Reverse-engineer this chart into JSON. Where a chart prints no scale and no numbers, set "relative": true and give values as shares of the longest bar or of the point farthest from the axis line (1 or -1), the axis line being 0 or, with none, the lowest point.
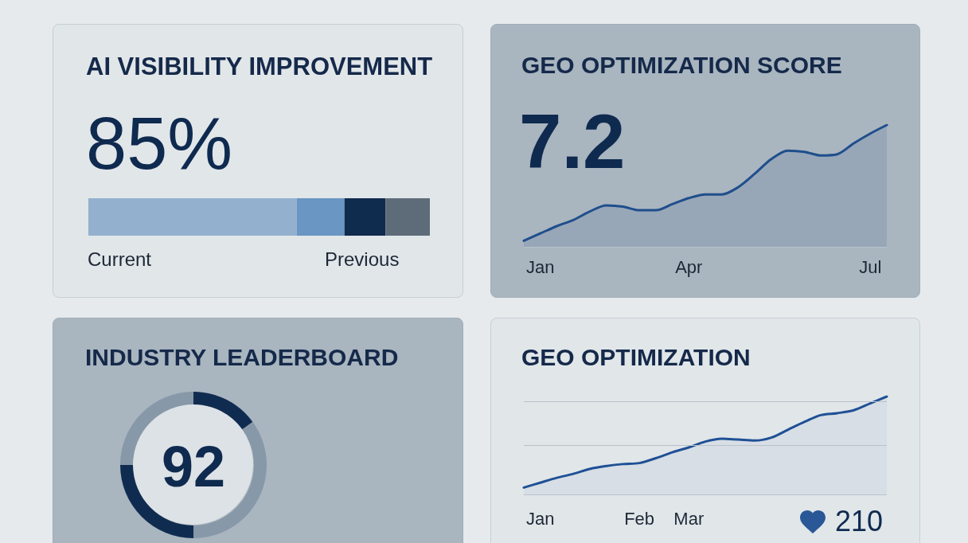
{
  "chart_data": [
    {
      "type": "bar",
      "title": "AI VISIBILITY IMPROVEMENT",
      "annotations": [
        "85%",
        "Current",
        "Previous"
      ],
      "orientation": "horizontal",
      "stacked": true,
      "relative": true,
      "categories": [
        null
      ],
      "series": [
        {
          "color": "#93b1cf",
          "values": [
            0.61
          ]
        },
        {
          "color": "#6996c2",
          "values": [
            0.14
          ]
        },
        {
          "color": "#0f2b4e",
          "values": [
            0.12
          ]
        },
        {
          "color": "#5e6c79",
          "values": [
            0.13
          ]
        }
      ]
    },
    {
      "type": "area",
      "title": "GEO OPTIMIZATION SCORE",
      "annotations": [
        "7.2"
      ],
      "relative": true,
      "categories": [
        null,
        "Jan",
        null,
        null,
        null,
        null,
        null,
        null,
        null,
        null,
        "Apr",
        null,
        null,
        null,
        null,
        null,
        null,
        null,
        null,
        null,
        null,
        "Jul",
        null
      ],
      "series": [
        {
          "color": "#1f4e8c",
          "values": [
            0.05,
            0.11,
            0.17,
            0.22,
            0.29,
            0.34,
            0.33,
            0.3,
            0.3,
            0.35,
            0.4,
            0.43,
            0.43,
            0.49,
            0.6,
            0.72,
            0.79,
            0.78,
            0.75,
            0.76,
            0.85,
            0.93,
            1
          ]
        }
      ]
    },
    {
      "type": "donut",
      "title": "INDUSTRY LEADERBOARD",
      "annotations": [
        "92"
      ],
      "categories": [
        null,
        null,
        null,
        null
      ],
      "values": [
        15,
        35,
        25,
        25
      ],
      "colors": [
        "#0f2c50",
        "#8798a8",
        "#0f2c50",
        "#8798a8"
      ]
    },
    {
      "type": "area",
      "title": "GEO OPTIMIZATION",
      "annotations": [
        "210"
      ],
      "relative": true,
      "ref_lines": [
        {
          "axis": "y",
          "value": 0,
          "color": "#b9c1c9"
        },
        {
          "axis": "y",
          "value": 0.5,
          "color": "#b9c1c9"
        },
        {
          "axis": "y",
          "value": 0.95,
          "color": "#b9c1c9"
        }
      ],
      "categories": [
        null,
        "Jan",
        null,
        null,
        null,
        null,
        null,
        "Feb",
        null,
        null,
        "Mar",
        null,
        null,
        null,
        null,
        null,
        null,
        null,
        null,
        null,
        null,
        null,
        null
      ],
      "series": [
        {
          "color": "#1f5096",
          "values": [
            0.07,
            0.12,
            0.17,
            0.21,
            0.26,
            0.29,
            0.31,
            0.32,
            0.37,
            0.43,
            0.48,
            0.54,
            0.57,
            0.56,
            0.55,
            0.58,
            0.66,
            0.74,
            0.81,
            0.83,
            0.86,
            0.93,
            1
          ]
        }
      ]
    }
  ]
}
